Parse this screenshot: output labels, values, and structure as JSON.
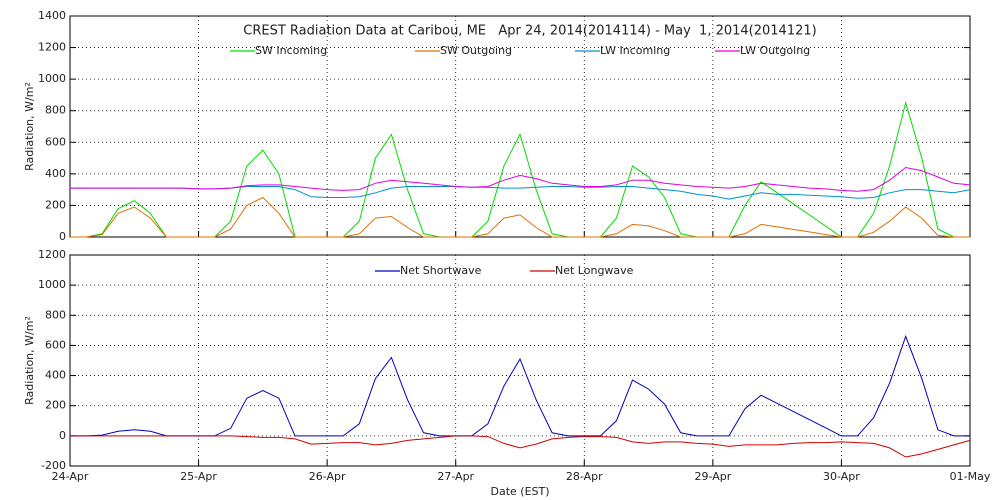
{
  "chart_data": [
    {
      "type": "line",
      "title": "CREST Radiation Data at Caribou, ME   Apr 24, 2014(2014114) - May  1, 2014(2014121)",
      "ylabel": "Radiation, W/m²",
      "x": [
        0,
        3,
        6,
        9,
        12,
        15,
        18,
        21,
        24,
        27,
        30,
        33,
        36,
        39,
        42,
        45,
        48,
        51,
        54,
        57,
        60,
        63,
        66,
        69,
        72,
        75,
        78,
        81,
        84,
        87,
        90,
        93,
        96,
        99,
        102,
        105,
        108,
        111,
        114,
        117,
        120,
        123,
        126,
        129,
        132,
        135,
        138,
        141,
        144,
        147,
        150,
        153,
        156,
        159,
        162,
        165,
        168
      ],
      "xlim": [
        0,
        168
      ],
      "xticks": [
        0,
        24,
        48,
        72,
        96,
        120,
        144,
        168
      ],
      "ylim": [
        0,
        1400
      ],
      "yticks": [
        0,
        200,
        400,
        600,
        800,
        1000,
        1200,
        1400
      ],
      "grid": true,
      "series": [
        {
          "name": "SW Incoming",
          "color": "#00dd00",
          "values": [
            0,
            0,
            20,
            180,
            230,
            150,
            0,
            0,
            0,
            0,
            100,
            450,
            550,
            400,
            0,
            0,
            0,
            0,
            100,
            500,
            650,
            300,
            20,
            0,
            0,
            0,
            100,
            450,
            650,
            300,
            20,
            0,
            0,
            0,
            120,
            450,
            380,
            250,
            20,
            0,
            0,
            0,
            200,
            350,
            280,
            210,
            140,
            70,
            0,
            0,
            150,
            450,
            850,
            500,
            50,
            0,
            0
          ]
        },
        {
          "name": "SW Outgoing",
          "color": "#e07000",
          "values": [
            0,
            0,
            15,
            150,
            190,
            120,
            0,
            0,
            0,
            0,
            50,
            200,
            250,
            150,
            0,
            0,
            0,
            0,
            20,
            120,
            130,
            60,
            0,
            0,
            0,
            0,
            20,
            120,
            140,
            60,
            0,
            0,
            0,
            0,
            20,
            80,
            70,
            40,
            0,
            0,
            0,
            0,
            20,
            80,
            64,
            48,
            32,
            16,
            0,
            0,
            30,
            100,
            190,
            120,
            10,
            0,
            0
          ]
        },
        {
          "name": "LW Incoming",
          "color": "#0090d0",
          "values": [
            310,
            310,
            310,
            310,
            310,
            310,
            310,
            310,
            305,
            305,
            310,
            320,
            320,
            320,
            300,
            255,
            250,
            250,
            255,
            280,
            310,
            320,
            320,
            320,
            320,
            315,
            315,
            310,
            310,
            315,
            320,
            320,
            315,
            315,
            320,
            320,
            310,
            300,
            290,
            270,
            260,
            240,
            260,
            280,
            270,
            270,
            265,
            260,
            255,
            245,
            250,
            280,
            300,
            300,
            290,
            280,
            300
          ]
        },
        {
          "name": "LW Outgoing",
          "color": "#e000e0",
          "values": [
            310,
            310,
            310,
            310,
            310,
            310,
            310,
            310,
            305,
            305,
            310,
            325,
            330,
            330,
            320,
            310,
            300,
            295,
            300,
            340,
            360,
            350,
            340,
            330,
            320,
            315,
            320,
            360,
            390,
            370,
            340,
            330,
            320,
            320,
            330,
            360,
            360,
            340,
            330,
            320,
            315,
            310,
            320,
            340,
            330,
            320,
            310,
            305,
            295,
            290,
            300,
            360,
            440,
            420,
            380,
            340,
            330
          ]
        }
      ]
    },
    {
      "type": "line",
      "ylabel": "Radiation, W/m²",
      "xlabel": "Date (EST)",
      "x": [
        0,
        3,
        6,
        9,
        12,
        15,
        18,
        21,
        24,
        27,
        30,
        33,
        36,
        39,
        42,
        45,
        48,
        51,
        54,
        57,
        60,
        63,
        66,
        69,
        72,
        75,
        78,
        81,
        84,
        87,
        90,
        93,
        96,
        99,
        102,
        105,
        108,
        111,
        114,
        117,
        120,
        123,
        126,
        129,
        132,
        135,
        138,
        141,
        144,
        147,
        150,
        153,
        156,
        159,
        162,
        165,
        168
      ],
      "xlim": [
        0,
        168
      ],
      "xticks": [
        {
          "value": 0,
          "label": "24-Apr"
        },
        {
          "value": 24,
          "label": "25-Apr"
        },
        {
          "value": 48,
          "label": "26-Apr"
        },
        {
          "value": 72,
          "label": "27-Apr"
        },
        {
          "value": 96,
          "label": "28-Apr"
        },
        {
          "value": 120,
          "label": "29-Apr"
        },
        {
          "value": 144,
          "label": "30-Apr"
        },
        {
          "value": 168,
          "label": "01-May"
        }
      ],
      "ylim": [
        -200,
        1200
      ],
      "yticks": [
        -200,
        0,
        200,
        400,
        600,
        800,
        1000,
        1200
      ],
      "grid": true,
      "series": [
        {
          "name": "Net Shortwave",
          "color": "#0000c0",
          "values": [
            0,
            0,
            5,
            30,
            40,
            30,
            0,
            0,
            0,
            0,
            50,
            250,
            300,
            250,
            0,
            0,
            0,
            0,
            80,
            380,
            520,
            240,
            20,
            0,
            0,
            0,
            80,
            330,
            510,
            240,
            20,
            0,
            0,
            0,
            100,
            370,
            310,
            210,
            20,
            0,
            0,
            0,
            180,
            270,
            216,
            162,
            108,
            54,
            0,
            0,
            120,
            350,
            660,
            380,
            40,
            0,
            0
          ]
        },
        {
          "name": "Net Longwave",
          "color": "#d00000",
          "values": [
            0,
            0,
            0,
            0,
            0,
            0,
            0,
            0,
            0,
            0,
            0,
            -5,
            -10,
            -10,
            -20,
            -55,
            -50,
            -45,
            -45,
            -60,
            -50,
            -30,
            -20,
            -10,
            0,
            0,
            -5,
            -50,
            -80,
            -55,
            -20,
            -10,
            -5,
            -5,
            -10,
            -40,
            -50,
            -40,
            -40,
            -50,
            -55,
            -70,
            -60,
            -60,
            -60,
            -50,
            -45,
            -45,
            -40,
            -45,
            -50,
            -80,
            -140,
            -120,
            -90,
            -60,
            -30
          ]
        }
      ]
    }
  ]
}
